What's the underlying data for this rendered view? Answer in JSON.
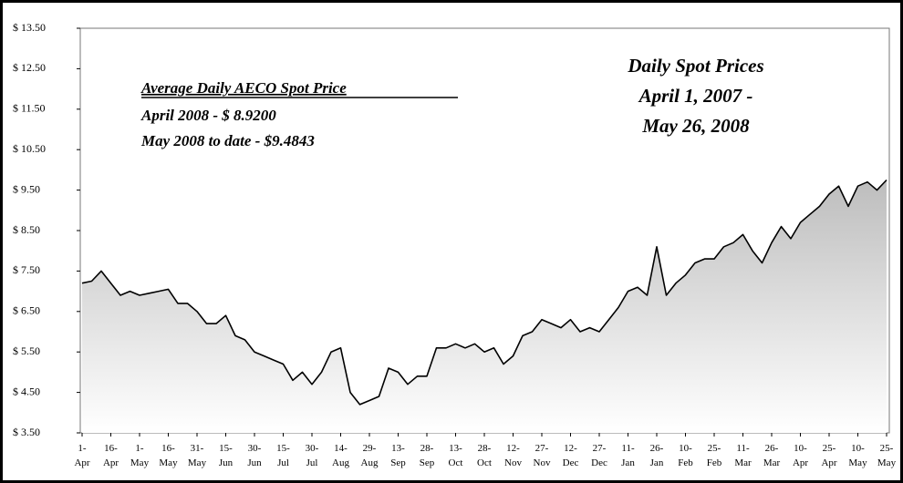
{
  "chart_data": {
    "type": "area",
    "title": "Daily Spot Prices",
    "subtitle": [
      "April 1, 2007 -",
      "May 26, 2008"
    ],
    "annotation": {
      "heading": "Average Daily AECO Spot Price",
      "lines": [
        "April  2008  -  $ 8.9200",
        "May 2008 to date -  $9.4843"
      ]
    },
    "categories": [
      "1-Apr",
      null,
      null,
      "16-Apr",
      null,
      null,
      "1-May",
      null,
      null,
      "16-May",
      null,
      null,
      "31-May",
      null,
      null,
      "15-Jun",
      null,
      null,
      "30-Jun",
      null,
      null,
      "15-Jul",
      null,
      null,
      "30-Jul",
      null,
      null,
      "14-Aug",
      null,
      null,
      "29-Aug",
      null,
      null,
      "13-Sep",
      null,
      null,
      "28-Sep",
      null,
      null,
      "13-Oct",
      null,
      null,
      "28-Oct",
      null,
      null,
      "12-Nov",
      null,
      null,
      "27-Nov",
      null,
      null,
      "12-Dec",
      null,
      null,
      "27-Dec",
      null,
      null,
      "11-Jan",
      null,
      null,
      "26-Jan",
      null,
      null,
      "10-Feb",
      null,
      null,
      "25-Feb",
      null,
      null,
      "11-Mar",
      null,
      null,
      "26-Mar",
      null,
      null,
      "10-Apr",
      null,
      null,
      "25-Apr",
      null,
      null,
      "10-May",
      null,
      null,
      "25-May"
    ],
    "values": [
      7.2,
      7.25,
      7.5,
      7.2,
      6.9,
      7.0,
      6.9,
      6.95,
      7.0,
      7.05,
      6.7,
      6.7,
      6.5,
      6.2,
      6.2,
      6.4,
      5.9,
      5.8,
      5.5,
      5.4,
      5.3,
      5.2,
      4.8,
      5.0,
      4.7,
      5.0,
      5.5,
      5.6,
      4.5,
      4.2,
      4.3,
      4.4,
      5.1,
      5.0,
      4.7,
      4.9,
      4.9,
      5.6,
      5.6,
      5.7,
      5.6,
      5.7,
      5.5,
      5.6,
      5.2,
      5.4,
      5.9,
      6.0,
      6.3,
      6.2,
      6.1,
      6.3,
      6.0,
      6.1,
      6.0,
      6.3,
      6.6,
      7.0,
      7.1,
      6.9,
      8.1,
      6.9,
      7.2,
      7.4,
      7.7,
      7.8,
      7.8,
      8.1,
      8.2,
      8.4,
      8.0,
      7.7,
      8.2,
      8.6,
      8.3,
      8.7,
      8.9,
      9.1,
      9.4,
      9.6,
      9.1,
      9.6,
      9.7,
      9.5,
      9.75
    ],
    "color": "#000000",
    "ylim": [
      3.5,
      13.5
    ],
    "yticks": [
      {
        "value": 3.5,
        "label": "$ 3.50"
      },
      {
        "value": 4.5,
        "label": "$ 4.50"
      },
      {
        "value": 5.5,
        "label": "$ 5.50"
      },
      {
        "value": 6.5,
        "label": "$ 6.50"
      },
      {
        "value": 7.5,
        "label": "$ 7.50"
      },
      {
        "value": 8.5,
        "label": "$ 8.50"
      },
      {
        "value": 9.5,
        "label": "$ 9.50"
      },
      {
        "value": 10.5,
        "label": "$ 10.50"
      },
      {
        "value": 11.5,
        "label": "$ 11.50"
      },
      {
        "value": 12.5,
        "label": "$ 12.50"
      },
      {
        "value": 13.5,
        "label": "$ 13.50"
      }
    ]
  }
}
